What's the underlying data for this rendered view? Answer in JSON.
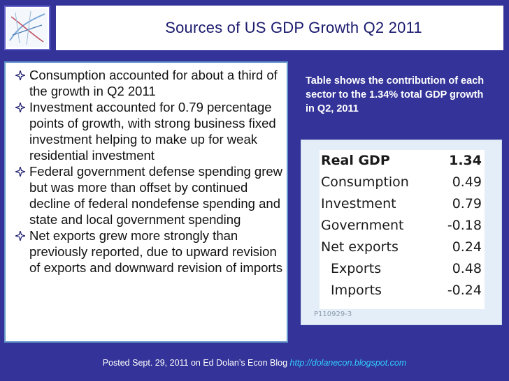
{
  "title": "Sources of US GDP Growth Q2 2011",
  "bullets": [
    "Consumption accounted for about a third of the growth in Q2 2011",
    "Investment accounted for 0.79 percentage points of growth, with strong business fixed investment helping to make up for weak residential investment",
    "Federal government defense spending grew but was more than offset by continued decline of federal nondefense spending and state and local government spending",
    "Net exports grew more strongly than previously reported, due to upward revision of exports and downward revision of imports"
  ],
  "note": "Table shows the contribution of each sector to the 1.34% total GDP growth in Q2, 2011",
  "table": {
    "rows": [
      {
        "label": "Real GDP",
        "value": "1.34"
      },
      {
        "label": "Consumption",
        "value": "0.49"
      },
      {
        "label": "Investment",
        "value": "0.79"
      },
      {
        "label": "Government",
        "value": "-0.18"
      },
      {
        "label": "Net exports",
        "value": "0.24"
      },
      {
        "label": "Exports",
        "value": "0.48"
      },
      {
        "label": "Imports",
        "value": "-0.24"
      }
    ],
    "code": "P110929-3"
  },
  "footer": {
    "text": "Posted Sept. 29, 2011 on Ed Dolan’s Econ Blog ",
    "link": "http://dolanecon.blogspot.com"
  },
  "colors": {
    "background": "#333399",
    "title_text": "#1a1a6e",
    "bullet_icon": "#1a1a6e",
    "link": "#33ccff"
  },
  "icons": {
    "bullet": "four-point-star-icon",
    "logo": "logo-sketch-icon"
  }
}
